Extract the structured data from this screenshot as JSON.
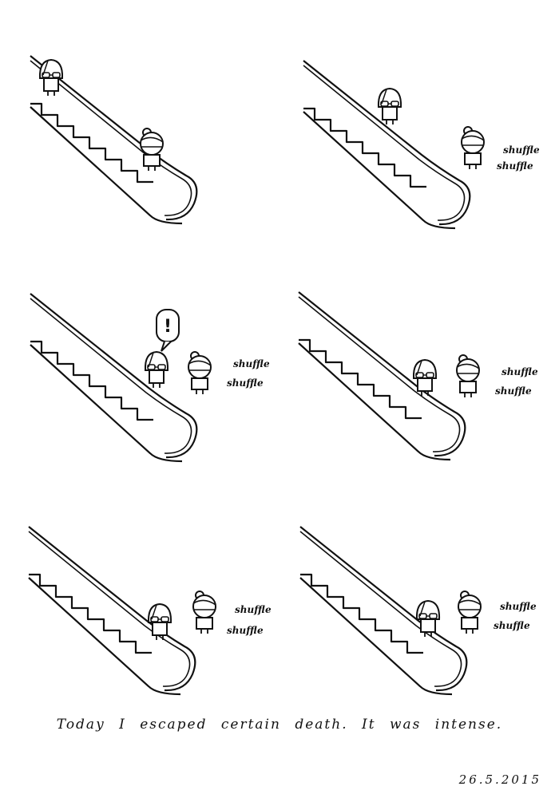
{
  "comic": {
    "sound_effect": "shuffle",
    "exclamation": "!",
    "caption": "Today I escaped certain death. It was intense.",
    "date": "26.5.2015"
  },
  "panels": [
    {
      "id": 1,
      "sfx_count": 0,
      "exclaim": false
    },
    {
      "id": 2,
      "sfx_count": 2,
      "exclaim": false
    },
    {
      "id": 3,
      "sfx_count": 2,
      "exclaim": true
    },
    {
      "id": 4,
      "sfx_count": 2,
      "exclaim": false
    },
    {
      "id": 5,
      "sfx_count": 2,
      "exclaim": false
    },
    {
      "id": 6,
      "sfx_count": 2,
      "exclaim": false
    }
  ],
  "colors": {
    "ink": "#111111",
    "paper": "#ffffff"
  }
}
